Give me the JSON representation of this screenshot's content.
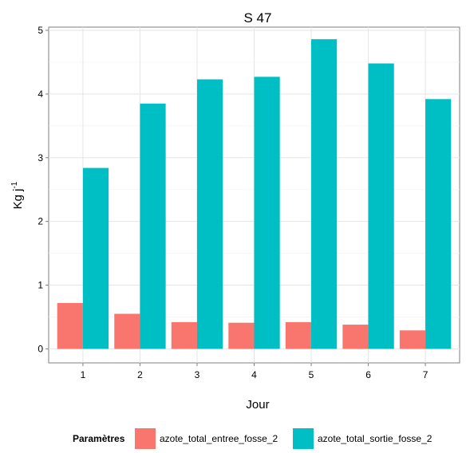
{
  "chart_data": {
    "type": "bar",
    "title": "S 47",
    "xlabel": "Jour",
    "ylabel": "Kg j",
    "ylabel_superscript": "-1",
    "categories": [
      "1",
      "2",
      "3",
      "4",
      "5",
      "6",
      "7"
    ],
    "series": [
      {
        "name": "azote_total_entree_fosse_2",
        "color": "#F8766D",
        "values": [
          0.72,
          0.55,
          0.42,
          0.41,
          0.42,
          0.38,
          0.29
        ]
      },
      {
        "name": "azote_total_sortie_fosse_2",
        "color": "#00BFC4",
        "values": [
          2.84,
          3.85,
          4.23,
          4.27,
          4.86,
          4.48,
          3.92
        ]
      }
    ],
    "ylim": [
      -0.22,
      5.05
    ],
    "yticks": [
      0,
      1,
      2,
      3,
      4,
      5
    ],
    "grid": true,
    "legend": {
      "title": "Paramètres",
      "placement": "bottom"
    }
  }
}
